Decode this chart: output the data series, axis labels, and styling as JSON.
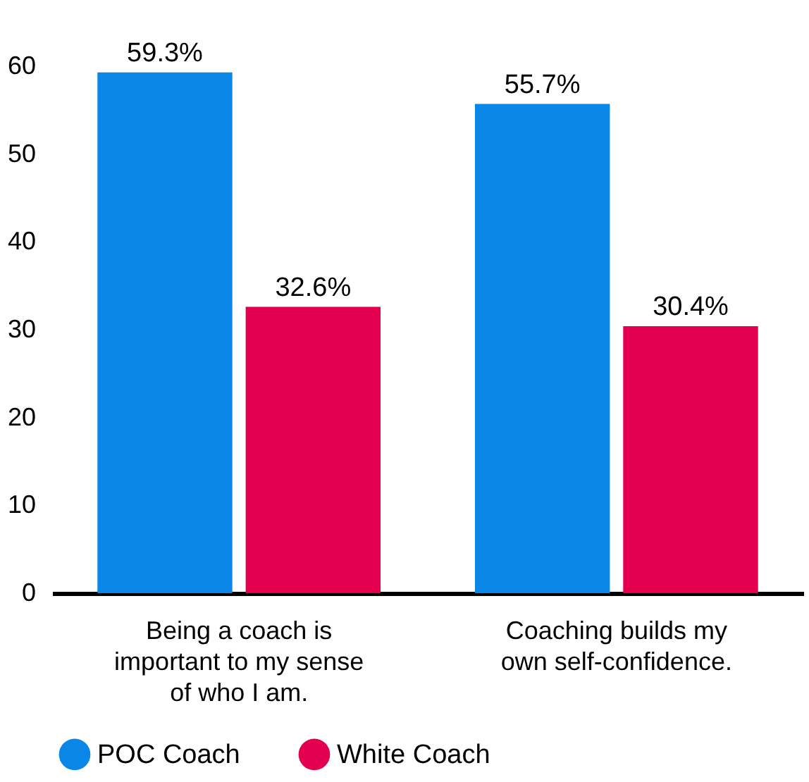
{
  "chart_data": {
    "type": "bar",
    "categories": [
      "Being a coach is important to my sense of who I am.",
      "Coaching builds my own self-confidence."
    ],
    "series": [
      {
        "name": "POC Coach",
        "color": "#0a87e6",
        "values": [
          59.3,
          55.7
        ],
        "value_labels": [
          "59.3%",
          "55.7%"
        ]
      },
      {
        "name": "White Coach",
        "color": "#e3004f",
        "values": [
          32.6,
          30.4
        ],
        "value_labels": [
          "32.6%",
          "30.4%"
        ]
      }
    ],
    "ylim": [
      0,
      60
    ],
    "yticks": [
      0,
      10,
      20,
      30,
      40,
      50,
      60
    ],
    "grid": false,
    "legend": "bottom"
  }
}
